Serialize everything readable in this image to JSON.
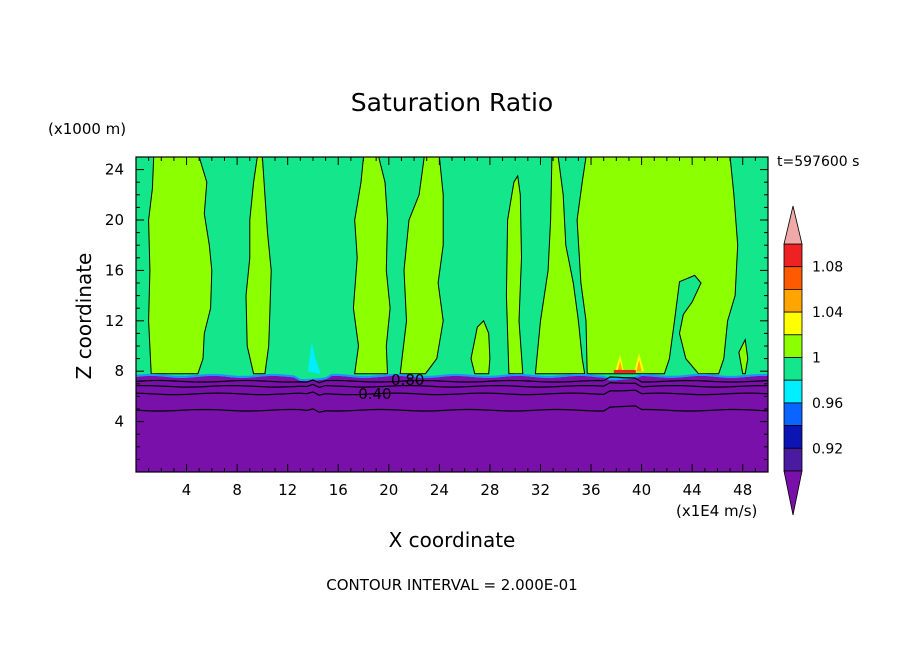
{
  "chart_data": {
    "type": "contour-filled",
    "title": "Saturation Ratio",
    "xlabel": "X coordinate",
    "ylabel": "Z coordinate",
    "x_unit": "(x1E4 m/s)",
    "y_unit": "(x1000 m)",
    "time_label": "t=597600 s",
    "footer": "CONTOUR INTERVAL = 2.000E-01",
    "xlim": [
      0,
      50
    ],
    "ylim": [
      0,
      25
    ],
    "x_ticks": [
      4,
      8,
      12,
      16,
      20,
      24,
      28,
      32,
      36,
      40,
      44,
      48
    ],
    "y_ticks": [
      4,
      8,
      12,
      16,
      20,
      24
    ],
    "contour_labels": [
      {
        "text": "0.80",
        "x": 21.5,
        "y": 7.3
      },
      {
        "text": "0.40",
        "x": 18.9,
        "y": 6.2
      }
    ],
    "colorbar": {
      "tick_labels": [
        "0.92",
        "0.96",
        "1",
        "1.04",
        "1.08"
      ],
      "bins": [
        {
          "lo": null,
          "hi": 0.9,
          "color": "#7a10aa"
        },
        {
          "lo": 0.9,
          "hi": 0.92,
          "color": "#4a1aa0"
        },
        {
          "lo": 0.92,
          "hi": 0.94,
          "color": "#0c14b4"
        },
        {
          "lo": 0.94,
          "hi": 0.96,
          "color": "#0a64ff"
        },
        {
          "lo": 0.96,
          "hi": 0.98,
          "color": "#00eeff"
        },
        {
          "lo": 0.98,
          "hi": 1.0,
          "color": "#14e68c"
        },
        {
          "lo": 1.0,
          "hi": 1.02,
          "color": "#8cff00"
        },
        {
          "lo": 1.02,
          "hi": 1.04,
          "color": "#ffff00"
        },
        {
          "lo": 1.04,
          "hi": 1.06,
          "color": "#ffa500"
        },
        {
          "lo": 1.06,
          "hi": 1.08,
          "color": "#ff5a00"
        },
        {
          "lo": 1.08,
          "hi": 1.1,
          "color": "#ee2222"
        },
        {
          "lo": 1.1,
          "hi": null,
          "color": "#f0a8a8"
        }
      ]
    },
    "fields": {
      "background_value": 0.99,
      "dry_layer_top_z": 7.5,
      "supersat_columns": [
        {
          "x0": 1.0,
          "x1": 5.0,
          "zmax": 25
        },
        {
          "x0": 9.0,
          "x1": 11.0,
          "zmax": 25
        },
        {
          "x0": 17.5,
          "x1": 19.5,
          "zmax": 25
        },
        {
          "x0": 21.0,
          "x1": 23.0,
          "zmax": 25
        },
        {
          "x0": 27.0,
          "x1": 28.0,
          "zmax": 12
        },
        {
          "x0": 29.5,
          "x1": 30.5,
          "zmax": 23
        },
        {
          "x0": 32.0,
          "x1": 35.0,
          "zmax": 25
        },
        {
          "x0": 36.0,
          "x1": 46.0,
          "zmax": 25
        },
        {
          "x0": 43.0,
          "x1": 47.0,
          "zmax": 14
        }
      ],
      "hotspots": [
        {
          "x": 14.0,
          "z": 8.0,
          "value": 0.97,
          "label": "cyan"
        },
        {
          "x": 38.3,
          "z": 8.0,
          "value": 1.05,
          "label": "orange"
        },
        {
          "x": 39.8,
          "z": 8.0,
          "value": 1.05,
          "label": "orange"
        }
      ]
    },
    "colors": {
      "fill_green": "#8cff00",
      "fill_teal": "#14e68c",
      "fill_purple": "#7a10aa",
      "fill_cyan": "#00eeff",
      "fill_yellow": "#ffff00",
      "fill_orange": "#ffa500",
      "fill_red": "#ee2222",
      "line": "#000000"
    }
  }
}
